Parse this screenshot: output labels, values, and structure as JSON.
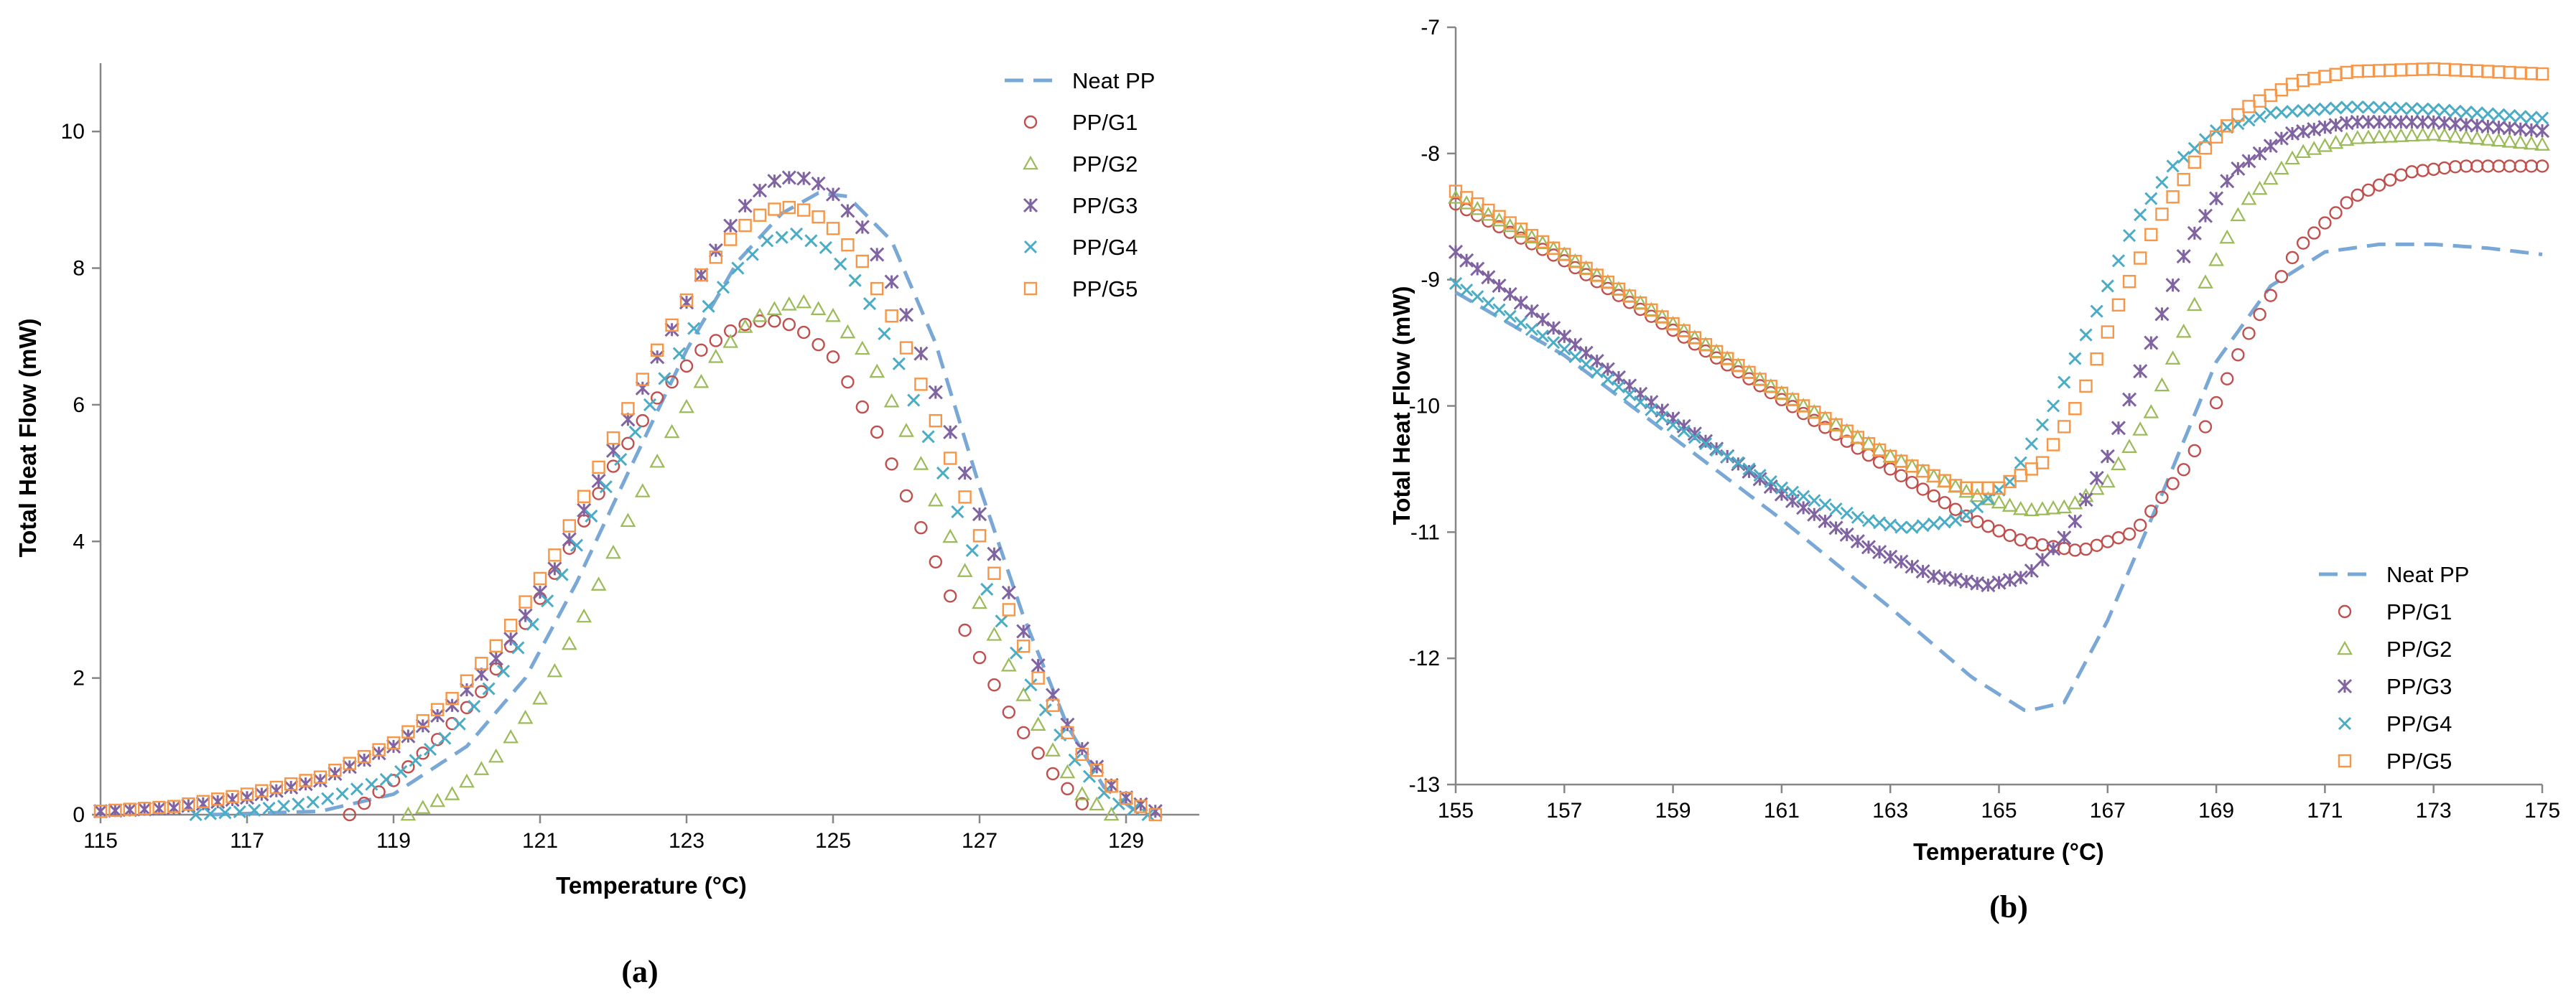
{
  "colors": {
    "Neat PP": "#7aa8d6",
    "PP/G1": "#c0504d",
    "PP/G2": "#9bbb59",
    "PP/G3": "#8064a2",
    "PP/G4": "#4bacc6",
    "PP/G5": "#f79646",
    "axis": "#868686"
  },
  "chart_data": [
    {
      "id": "a",
      "type": "line",
      "caption": "(a)",
      "xlabel": "Temperature (°C)",
      "ylabel": "Total Heat Flow (mW)",
      "xlim": [
        115,
        130
      ],
      "ylim": [
        0,
        11
      ],
      "xticks": [
        115,
        117,
        119,
        121,
        123,
        125,
        127,
        129
      ],
      "yticks": [
        0,
        2,
        4,
        6,
        8,
        10
      ],
      "legend_position": "top-right",
      "series": [
        {
          "name": "Neat PP",
          "style": "dashed",
          "points": [
            [
              116.5,
              0
            ],
            [
              118.0,
              0.05
            ],
            [
              119.0,
              0.3
            ],
            [
              120.0,
              1.0
            ],
            [
              120.8,
              2.0
            ],
            [
              121.5,
              3.4
            ],
            [
              122.2,
              5.0
            ],
            [
              123.0,
              6.8
            ],
            [
              123.7,
              8.1
            ],
            [
              124.3,
              8.8
            ],
            [
              124.8,
              9.1
            ],
            [
              125.2,
              9.05
            ],
            [
              125.8,
              8.4
            ],
            [
              126.4,
              6.9
            ],
            [
              127.0,
              4.8
            ],
            [
              127.6,
              2.9
            ],
            [
              128.2,
              1.3
            ],
            [
              128.7,
              0.4
            ],
            [
              129.2,
              0
            ]
          ]
        },
        {
          "name": "PP/G1",
          "style": "circle",
          "points": [
            [
              118.4,
              0
            ],
            [
              119.0,
              0.5
            ],
            [
              119.6,
              1.1
            ],
            [
              120.2,
              1.8
            ],
            [
              120.8,
              2.8
            ],
            [
              121.4,
              3.9
            ],
            [
              122.0,
              5.1
            ],
            [
              122.6,
              6.1
            ],
            [
              123.2,
              6.8
            ],
            [
              123.7,
              7.15
            ],
            [
              124.1,
              7.25
            ],
            [
              124.5,
              7.15
            ],
            [
              125.0,
              6.7
            ],
            [
              125.6,
              5.6
            ],
            [
              126.2,
              4.2
            ],
            [
              126.8,
              2.7
            ],
            [
              127.4,
              1.5
            ],
            [
              128.0,
              0.6
            ],
            [
              128.5,
              0.05
            ]
          ]
        },
        {
          "name": "PP/G2",
          "style": "triangle",
          "points": [
            [
              119.2,
              0
            ],
            [
              119.8,
              0.3
            ],
            [
              120.4,
              0.85
            ],
            [
              121.0,
              1.7
            ],
            [
              121.6,
              2.9
            ],
            [
              122.2,
              4.3
            ],
            [
              122.8,
              5.6
            ],
            [
              123.4,
              6.7
            ],
            [
              123.9,
              7.25
            ],
            [
              124.3,
              7.45
            ],
            [
              124.6,
              7.5
            ],
            [
              125.0,
              7.3
            ],
            [
              125.5,
              6.7
            ],
            [
              126.1,
              5.4
            ],
            [
              126.7,
              3.8
            ],
            [
              127.3,
              2.4
            ],
            [
              127.9,
              1.1
            ],
            [
              128.4,
              0.3
            ],
            [
              128.8,
              0
            ]
          ]
        },
        {
          "name": "PP/G3",
          "style": "star",
          "points": [
            [
              115.0,
              0.05
            ],
            [
              116.0,
              0.1
            ],
            [
              117.0,
              0.25
            ],
            [
              118.0,
              0.5
            ],
            [
              119.0,
              1.0
            ],
            [
              119.8,
              1.6
            ],
            [
              120.5,
              2.4
            ],
            [
              121.2,
              3.6
            ],
            [
              121.9,
              5.1
            ],
            [
              122.6,
              6.7
            ],
            [
              123.2,
              7.9
            ],
            [
              123.7,
              8.8
            ],
            [
              124.1,
              9.25
            ],
            [
              124.5,
              9.35
            ],
            [
              124.9,
              9.2
            ],
            [
              125.4,
              8.6
            ],
            [
              125.9,
              7.6
            ],
            [
              126.5,
              5.9
            ],
            [
              127.1,
              4.1
            ],
            [
              127.7,
              2.4
            ],
            [
              128.3,
              1.1
            ],
            [
              128.9,
              0.3
            ],
            [
              129.5,
              0
            ]
          ]
        },
        {
          "name": "PP/G4",
          "style": "cross",
          "points": [
            [
              116.3,
              0
            ],
            [
              117.0,
              0.05
            ],
            [
              118.0,
              0.2
            ],
            [
              119.0,
              0.55
            ],
            [
              119.8,
              1.2
            ],
            [
              120.5,
              2.1
            ],
            [
              121.2,
              3.3
            ],
            [
              121.9,
              4.8
            ],
            [
              122.6,
              6.2
            ],
            [
              123.2,
              7.3
            ],
            [
              123.7,
              8.0
            ],
            [
              124.1,
              8.4
            ],
            [
              124.5,
              8.5
            ],
            [
              124.9,
              8.3
            ],
            [
              125.4,
              7.7
            ],
            [
              125.9,
              6.6
            ],
            [
              126.5,
              5.0
            ],
            [
              127.1,
              3.3
            ],
            [
              127.7,
              1.9
            ],
            [
              128.3,
              0.8
            ],
            [
              128.8,
              0.2
            ],
            [
              129.3,
              0
            ]
          ]
        },
        {
          "name": "PP/G5",
          "style": "square",
          "points": [
            [
              115.0,
              0.05
            ],
            [
              116.0,
              0.12
            ],
            [
              117.0,
              0.3
            ],
            [
              118.0,
              0.55
            ],
            [
              119.0,
              1.05
            ],
            [
              119.8,
              1.7
            ],
            [
              120.5,
              2.6
            ],
            [
              121.2,
              3.8
            ],
            [
              121.9,
              5.3
            ],
            [
              122.6,
              6.8
            ],
            [
              123.2,
              7.9
            ],
            [
              123.7,
              8.55
            ],
            [
              124.1,
              8.85
            ],
            [
              124.5,
              8.9
            ],
            [
              124.9,
              8.7
            ],
            [
              125.4,
              8.1
            ],
            [
              125.9,
              7.1
            ],
            [
              126.5,
              5.5
            ],
            [
              127.1,
              3.8
            ],
            [
              127.7,
              2.2
            ],
            [
              128.3,
              1.0
            ],
            [
              128.9,
              0.3
            ],
            [
              129.4,
              0
            ]
          ]
        }
      ]
    },
    {
      "id": "b",
      "type": "line",
      "caption": "(b)",
      "xlabel": "Temperature (°C)",
      "ylabel": "Total Heat Flow (mW)",
      "xlim": [
        155,
        175
      ],
      "ylim": [
        -13,
        -7
      ],
      "xticks": [
        155,
        157,
        159,
        161,
        163,
        165,
        167,
        169,
        171,
        173,
        175
      ],
      "yticks": [
        -13,
        -12,
        -11,
        -10,
        -9,
        -8,
        -7
      ],
      "legend_position": "bottom-right",
      "series": [
        {
          "name": "Neat PP",
          "style": "dashed",
          "points": [
            [
              155,
              -9.1
            ],
            [
              157,
              -9.6
            ],
            [
              159,
              -10.25
            ],
            [
              161,
              -10.9
            ],
            [
              163,
              -11.6
            ],
            [
              164.5,
              -12.15
            ],
            [
              165.5,
              -12.42
            ],
            [
              166.2,
              -12.35
            ],
            [
              167,
              -11.7
            ],
            [
              168,
              -10.7
            ],
            [
              169,
              -9.65
            ],
            [
              170,
              -9.05
            ],
            [
              171,
              -8.78
            ],
            [
              172,
              -8.72
            ],
            [
              173,
              -8.72
            ],
            [
              174,
              -8.75
            ],
            [
              175,
              -8.8
            ]
          ]
        },
        {
          "name": "PP/G1",
          "style": "circle",
          "points": [
            [
              155,
              -8.4
            ],
            [
              157,
              -8.85
            ],
            [
              159,
              -9.4
            ],
            [
              161,
              -9.95
            ],
            [
              163,
              -10.5
            ],
            [
              164.5,
              -10.9
            ],
            [
              165.5,
              -11.08
            ],
            [
              166.5,
              -11.15
            ],
            [
              167.5,
              -11.0
            ],
            [
              168.5,
              -10.45
            ],
            [
              169.5,
              -9.5
            ],
            [
              170.5,
              -8.75
            ],
            [
              171.5,
              -8.35
            ],
            [
              172.5,
              -8.15
            ],
            [
              173.5,
              -8.1
            ],
            [
              175,
              -8.1
            ]
          ]
        },
        {
          "name": "PP/G2",
          "style": "triangle",
          "points": [
            [
              155,
              -8.35
            ],
            [
              157,
              -8.8
            ],
            [
              159,
              -9.35
            ],
            [
              161,
              -9.9
            ],
            [
              163,
              -10.4
            ],
            [
              164.5,
              -10.7
            ],
            [
              165.5,
              -10.83
            ],
            [
              166.3,
              -10.8
            ],
            [
              167.0,
              -10.6
            ],
            [
              167.8,
              -10.05
            ],
            [
              168.6,
              -9.2
            ],
            [
              169.5,
              -8.4
            ],
            [
              170.5,
              -8.0
            ],
            [
              171.5,
              -7.88
            ],
            [
              173,
              -7.85
            ],
            [
              175,
              -7.93
            ]
          ]
        },
        {
          "name": "PP/G3",
          "style": "star",
          "points": [
            [
              155,
              -8.78
            ],
            [
              157,
              -9.45
            ],
            [
              159,
              -10.1
            ],
            [
              161,
              -10.7
            ],
            [
              162.5,
              -11.1
            ],
            [
              163.8,
              -11.35
            ],
            [
              164.8,
              -11.42
            ],
            [
              165.5,
              -11.35
            ],
            [
              166.3,
              -11.0
            ],
            [
              167.0,
              -10.4
            ],
            [
              167.8,
              -9.5
            ],
            [
              168.5,
              -8.7
            ],
            [
              169.3,
              -8.15
            ],
            [
              170.3,
              -7.85
            ],
            [
              171.5,
              -7.75
            ],
            [
              173,
              -7.75
            ],
            [
              175,
              -7.82
            ]
          ]
        },
        {
          "name": "PP/G4",
          "style": "cross",
          "points": [
            [
              155,
              -9.03
            ],
            [
              157,
              -9.55
            ],
            [
              159,
              -10.15
            ],
            [
              161,
              -10.65
            ],
            [
              162.5,
              -10.9
            ],
            [
              163.3,
              -10.97
            ],
            [
              164.3,
              -10.9
            ],
            [
              165.2,
              -10.6
            ],
            [
              166,
              -10.0
            ],
            [
              166.8,
              -9.25
            ],
            [
              167.5,
              -8.55
            ],
            [
              168.2,
              -8.1
            ],
            [
              169,
              -7.82
            ],
            [
              170,
              -7.68
            ],
            [
              171.5,
              -7.63
            ],
            [
              173,
              -7.65
            ],
            [
              175,
              -7.72
            ]
          ]
        },
        {
          "name": "PP/G5",
          "style": "square",
          "points": [
            [
              155,
              -8.3
            ],
            [
              157,
              -8.8
            ],
            [
              159,
              -9.35
            ],
            [
              161,
              -9.9
            ],
            [
              163,
              -10.4
            ],
            [
              164.3,
              -10.65
            ],
            [
              165.0,
              -10.65
            ],
            [
              165.8,
              -10.45
            ],
            [
              166.5,
              -9.95
            ],
            [
              167.2,
              -9.2
            ],
            [
              167.9,
              -8.55
            ],
            [
              168.7,
              -8.0
            ],
            [
              169.5,
              -7.65
            ],
            [
              170.5,
              -7.43
            ],
            [
              171.5,
              -7.35
            ],
            [
              173,
              -7.33
            ],
            [
              175,
              -7.37
            ]
          ]
        }
      ]
    }
  ]
}
